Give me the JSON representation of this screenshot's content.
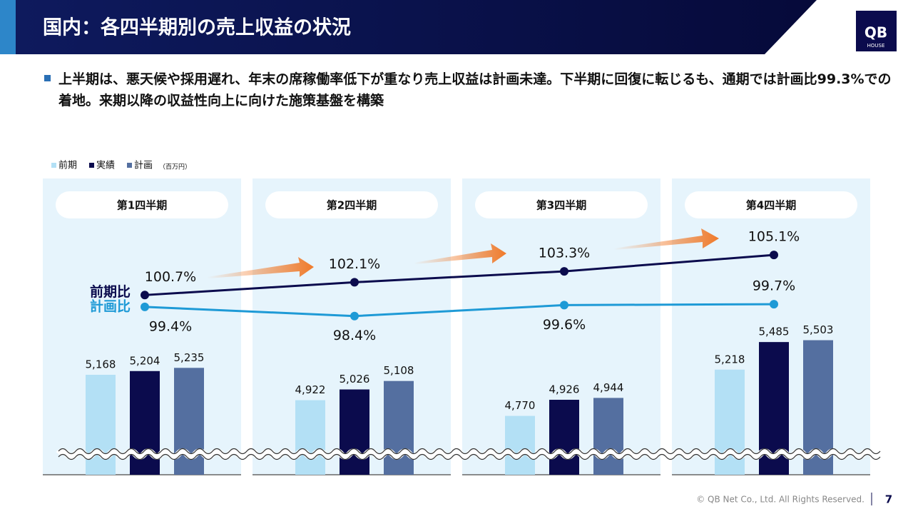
{
  "header": {
    "title": "国内：各四半期別の売上収益の状況",
    "logo": "QB",
    "logo_sub": "HOUSE"
  },
  "summary": "上半期は、悪天候や採用遅れ、年末の席稼働率低下が重なり売上収益は計画未達。下半期に回復に転じるも、通期では計画比99.3%での着地。来期以降の収益性向上に向けた施策基盤を構築",
  "footer": {
    "copyright": "© QB Net Co., Ltd. All Rights Reserved.",
    "page": "7"
  },
  "chart_data": {
    "type": "bar",
    "unit_label": "（百万円）",
    "categories": [
      "第1四半期",
      "第2四半期",
      "第3四半期",
      "第4四半期"
    ],
    "ylim": [
      4200,
      7000
    ],
    "y2lim": [
      81,
      112.7
    ],
    "series": [
      {
        "name": "前期",
        "color": "#b3e0f5",
        "values": [
          5168,
          4922,
          4770,
          5218
        ],
        "value_labels": [
          "5,168",
          "4,922",
          "4,770",
          "5,218"
        ]
      },
      {
        "name": "実績",
        "color": "#0b0b4d",
        "values": [
          5204,
          5026,
          4926,
          5485
        ],
        "value_labels": [
          "5,204",
          "5,026",
          "4,926",
          "5,485"
        ]
      },
      {
        "name": "計画",
        "color": "#546fa0",
        "values": [
          5235,
          5108,
          4944,
          5503
        ],
        "value_labels": [
          "5,235",
          "5,108",
          "4,944",
          "5,503"
        ]
      },
      {
        "name": "前期比",
        "type": "line",
        "axis": "y2",
        "color": "#0b0b4d",
        "values": [
          100.7,
          102.1,
          103.3,
          105.1
        ],
        "value_labels": [
          "100.7%",
          "102.1%",
          "103.3%",
          "105.1%"
        ]
      },
      {
        "name": "計画比",
        "type": "line",
        "axis": "y2",
        "color": "#1e9ad6",
        "values": [
          99.4,
          98.4,
          99.6,
          99.7
        ],
        "value_labels": [
          "99.4%",
          "98.4%",
          "99.6%",
          "99.7%"
        ]
      }
    ]
  }
}
